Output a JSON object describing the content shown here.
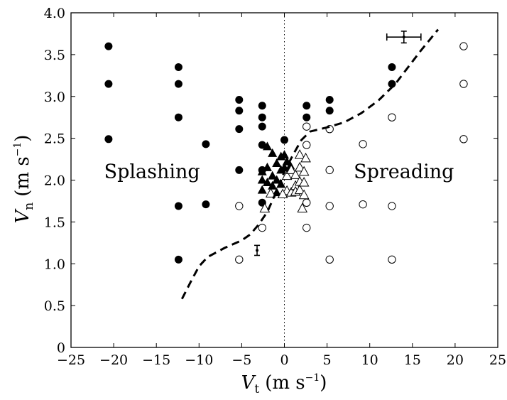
{
  "chart_data": {
    "type": "scatter",
    "xlabel": {
      "symbol": "V",
      "subscript": "t",
      "unit_pre": "(m s",
      "unit_sup": "−1",
      "unit_post": ")"
    },
    "ylabel": {
      "symbol": "V",
      "subscript": "n",
      "unit_pre": "(m s",
      "unit_sup": "−1",
      "unit_post": ")"
    },
    "xlim": [
      -25,
      25
    ],
    "ylim": [
      0,
      4.0
    ],
    "xticks": [
      -25,
      -20,
      -15,
      -10,
      -5,
      0,
      5,
      10,
      15,
      20,
      25
    ],
    "yticks": [
      0,
      0.5,
      1.0,
      1.5,
      2.0,
      2.5,
      3.0,
      3.5,
      4.0
    ],
    "xtick_labels": [
      "−25",
      "−20",
      "−15",
      "−10",
      "−5",
      "0",
      "5",
      "10",
      "15",
      "20",
      "25"
    ],
    "ytick_labels": [
      "0",
      "0.5",
      "1.0",
      "1.5",
      "2.0",
      "2.5",
      "3.0",
      "3.5",
      "4.0"
    ],
    "grid": false,
    "annotations": [
      {
        "text": "Splashing",
        "x": -15.5,
        "y": 2.1
      },
      {
        "text": "Spreading",
        "x": 14.0,
        "y": 2.1
      }
    ],
    "vertical_reference_line": {
      "x": 0,
      "style": "dotted"
    },
    "series": [
      {
        "marker": "filled-circle",
        "points": [
          [
            -20.6,
            3.6
          ],
          [
            -20.6,
            3.15
          ],
          [
            -20.6,
            2.49
          ],
          [
            -12.4,
            3.35
          ],
          [
            -12.4,
            3.15
          ],
          [
            -12.4,
            2.75
          ],
          [
            -12.4,
            1.69
          ],
          [
            -12.4,
            1.05
          ],
          [
            -9.2,
            2.43
          ],
          [
            -9.2,
            1.71
          ],
          [
            -5.3,
            2.96
          ],
          [
            -5.3,
            2.83
          ],
          [
            -5.3,
            2.61
          ],
          [
            -5.3,
            2.12
          ],
          [
            -2.6,
            2.89
          ],
          [
            -2.6,
            2.75
          ],
          [
            -2.6,
            2.64
          ],
          [
            -2.6,
            2.42
          ],
          [
            -2.6,
            2.12
          ],
          [
            -2.6,
            1.73
          ],
          [
            0.0,
            2.48
          ],
          [
            2.6,
            2.89
          ],
          [
            2.6,
            2.75
          ],
          [
            5.3,
            2.96
          ],
          [
            5.3,
            2.83
          ],
          [
            12.6,
            3.35
          ],
          [
            12.6,
            3.15
          ]
        ]
      },
      {
        "marker": "open-circle",
        "points": [
          [
            21.0,
            3.6
          ],
          [
            21.0,
            3.15
          ],
          [
            21.0,
            2.49
          ],
          [
            12.6,
            2.75
          ],
          [
            12.6,
            1.69
          ],
          [
            12.6,
            1.05
          ],
          [
            9.2,
            2.43
          ],
          [
            9.2,
            1.71
          ],
          [
            5.3,
            2.61
          ],
          [
            5.3,
            2.12
          ],
          [
            5.3,
            1.69
          ],
          [
            5.3,
            1.05
          ],
          [
            2.6,
            2.64
          ],
          [
            2.6,
            2.42
          ],
          [
            2.6,
            1.73
          ],
          [
            2.6,
            1.43
          ],
          [
            -5.3,
            1.69
          ],
          [
            -5.3,
            1.05
          ],
          [
            -2.6,
            1.43
          ]
        ]
      },
      {
        "marker": "filled-triangle",
        "points": [
          [
            -2.6,
            2.1
          ],
          [
            -2.6,
            2.0
          ],
          [
            -2.6,
            1.88
          ],
          [
            -2.0,
            2.4
          ],
          [
            -2.0,
            2.15
          ],
          [
            -2.0,
            1.97
          ],
          [
            -1.4,
            2.32
          ],
          [
            -1.4,
            2.05
          ],
          [
            -1.4,
            1.93
          ],
          [
            -0.9,
            2.2
          ],
          [
            -0.9,
            2.0
          ],
          [
            -0.9,
            1.85
          ],
          [
            -0.4,
            2.28
          ],
          [
            -0.4,
            2.12
          ],
          [
            -0.4,
            1.95
          ],
          [
            0.0,
            2.3
          ],
          [
            0.0,
            2.15
          ],
          [
            0.3,
            2.22
          ],
          [
            0.7,
            2.17
          ]
        ]
      },
      {
        "marker": "open-triangle",
        "points": [
          [
            0.3,
            2.05
          ],
          [
            0.3,
            1.87
          ],
          [
            0.8,
            2.12
          ],
          [
            0.8,
            1.85
          ],
          [
            1.3,
            2.06
          ],
          [
            1.3,
            1.93
          ],
          [
            1.3,
            1.86
          ],
          [
            1.8,
            2.3
          ],
          [
            1.8,
            2.15
          ],
          [
            1.8,
            1.98
          ],
          [
            1.8,
            1.88
          ],
          [
            2.3,
            2.1
          ],
          [
            2.3,
            1.97
          ],
          [
            2.3,
            1.82
          ],
          [
            2.5,
            2.26
          ],
          [
            -2.3,
            1.66
          ],
          [
            2.1,
            1.66
          ],
          [
            -1.6,
            1.84
          ],
          [
            -0.2,
            1.83
          ]
        ]
      },
      {
        "marker": "dashed-curve",
        "points": [
          [
            -12,
            0.58
          ],
          [
            -11,
            0.78
          ],
          [
            -10,
            0.97
          ],
          [
            -9,
            1.08
          ],
          [
            -7,
            1.19
          ],
          [
            -5,
            1.28
          ],
          [
            -4,
            1.35
          ],
          [
            -3,
            1.47
          ],
          [
            -2,
            1.62
          ],
          [
            -1,
            1.85
          ],
          [
            0,
            2.1
          ],
          [
            1,
            2.3
          ],
          [
            2,
            2.48
          ],
          [
            3,
            2.58
          ],
          [
            5,
            2.63
          ],
          [
            7,
            2.69
          ],
          [
            9,
            2.8
          ],
          [
            11,
            2.95
          ],
          [
            13,
            3.15
          ],
          [
            14.5,
            3.35
          ],
          [
            16,
            3.55
          ],
          [
            18,
            3.8
          ]
        ]
      }
    ],
    "error_bars": [
      {
        "x": 14.0,
        "y": 3.71,
        "xerr": 2.0,
        "yerr": 0.07
      },
      {
        "x": -3.2,
        "y": 1.16,
        "xerr": 0,
        "yerr": 0.06
      }
    ]
  }
}
